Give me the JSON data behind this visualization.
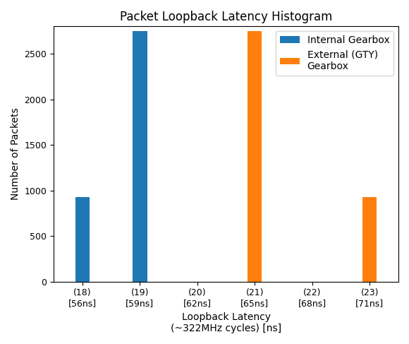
{
  "title": "Packet Loopback Latency Histogram",
  "xlabel": "Loopback Latency\n(~322MHz cycles) [ns]",
  "ylabel": "Number of Packets",
  "categories": [
    "(18)\n[56ns]",
    "(19)\n[59ns]",
    "(20)\n[62ns]",
    "(21)\n[65ns]",
    "(22)\n[68ns]",
    "(23)\n[71ns]"
  ],
  "internal_gearbox": [
    930,
    2750,
    0,
    0,
    0,
    0
  ],
  "external_gearbox": [
    0,
    0,
    0,
    2750,
    0,
    930
  ],
  "internal_color": "#1f77b4",
  "external_color": "#ff7f0e",
  "internal_label": "Internal Gearbox",
  "external_label": "External (GTY)\nGearbox",
  "ylim": [
    0,
    2800
  ],
  "yticks": [
    0,
    500,
    1000,
    1500,
    2000,
    2500
  ],
  "bar_width": 0.25,
  "title_fontsize": 12,
  "axis_fontsize": 10,
  "tick_fontsize": 9,
  "legend_fontsize": 10,
  "figsize": [
    5.8,
    4.87
  ],
  "dpi": 100
}
